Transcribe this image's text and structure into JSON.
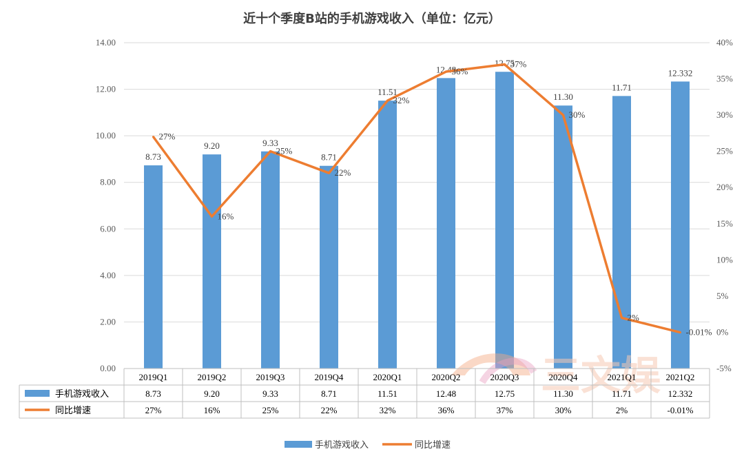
{
  "chart_data": {
    "type": "bar+line",
    "title": "近十个季度B站的手机游戏收入（单位：亿元）",
    "categories": [
      "2019Q1",
      "2019Q2",
      "2019Q3",
      "2019Q4",
      "2020Q1",
      "2020Q2",
      "2020Q3",
      "2020Q4",
      "2021Q1",
      "2021Q2"
    ],
    "series": [
      {
        "name": "手机游戏收入",
        "type": "bar",
        "axis": "left",
        "color": "#5b9bd5",
        "values": [
          8.73,
          9.2,
          9.33,
          8.71,
          11.51,
          12.48,
          12.75,
          11.3,
          11.71,
          12.332
        ],
        "labels": [
          "8.73",
          "9.20",
          "9.33",
          "8.71",
          "11.51",
          "12.48",
          "12.75",
          "11.30",
          "11.71",
          "12.332"
        ]
      },
      {
        "name": "同比增速",
        "type": "line",
        "axis": "right",
        "color": "#ed7d31",
        "values": [
          27,
          16,
          25,
          22,
          32,
          36,
          37,
          30,
          2,
          -0.01
        ],
        "labels": [
          "27%",
          "16%",
          "25%",
          "22%",
          "32%",
          "36%",
          "37%",
          "30%",
          "2%",
          "-0.01%"
        ]
      }
    ],
    "y_left": {
      "min": 0,
      "max": 14,
      "ticks": [
        "0.00",
        "2.00",
        "4.00",
        "6.00",
        "8.00",
        "10.00",
        "12.00",
        "14.00"
      ]
    },
    "y_right": {
      "min": -5,
      "max": 40,
      "ticks": [
        "-5%",
        "0%",
        "5%",
        "10%",
        "15%",
        "20%",
        "25%",
        "30%",
        "35%",
        "40%"
      ]
    },
    "grid": true,
    "legend_position": "bottom",
    "data_table": true
  },
  "watermark": {
    "text": "三文娱"
  }
}
